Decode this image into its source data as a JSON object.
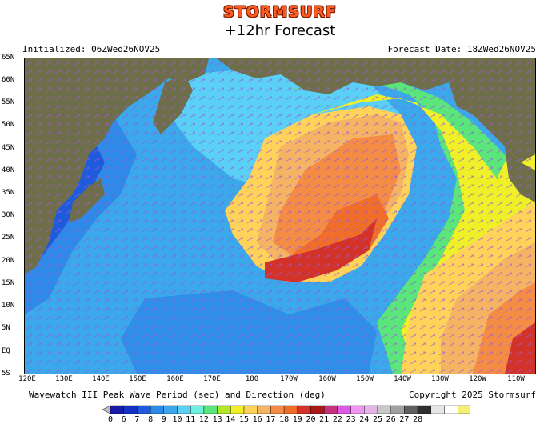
{
  "header": {
    "brand": "STORMSURF",
    "title": "+12hr Forecast",
    "initialized": "Initialized: 06ZWed26NOV25",
    "forecast_date": "Forecast Date: 18ZWed26NOV25"
  },
  "footer": {
    "caption": "Wavewatch III Peak Wave Period (sec) and Direction (deg)",
    "copyright": "Copyright 2025 Stormsurf"
  },
  "lat_labels": [
    "65N",
    "60N",
    "55N",
    "50N",
    "45N",
    "40N",
    "35N",
    "30N",
    "25N",
    "20N",
    "15N",
    "10N",
    "5N",
    "EQ",
    "5S"
  ],
  "lon_labels": [
    "120E",
    "130E",
    "140E",
    "150E",
    "160E",
    "170E",
    "180",
    "170W",
    "160W",
    "150W",
    "140W",
    "130W",
    "120W",
    "110W"
  ],
  "scale": {
    "labels": [
      "0",
      "6",
      "7",
      "8",
      "9",
      "10",
      "11",
      "12",
      "13",
      "14",
      "15",
      "16",
      "17",
      "18",
      "19",
      "20",
      "21",
      "22",
      "23",
      "24",
      "25",
      "26",
      "27",
      "28"
    ],
    "colors": [
      "#1a1aa8",
      "#1432c8",
      "#1e5adc",
      "#2e8ae8",
      "#3aa8ea",
      "#5ad0f6",
      "#6ef0e0",
      "#5ae67a",
      "#b4e628",
      "#f0f028",
      "#ffd25a",
      "#f5b464",
      "#f58c46",
      "#f06e2a",
      "#d23228",
      "#aa1818",
      "#c8327a",
      "#dc5ae6",
      "#f096f0",
      "#e6b4e6",
      "#c8c8c8",
      "#a0a0a0",
      "#606060",
      "#303030",
      "#e6e6e6",
      "#ffffff",
      "#f5f06e"
    ]
  }
}
